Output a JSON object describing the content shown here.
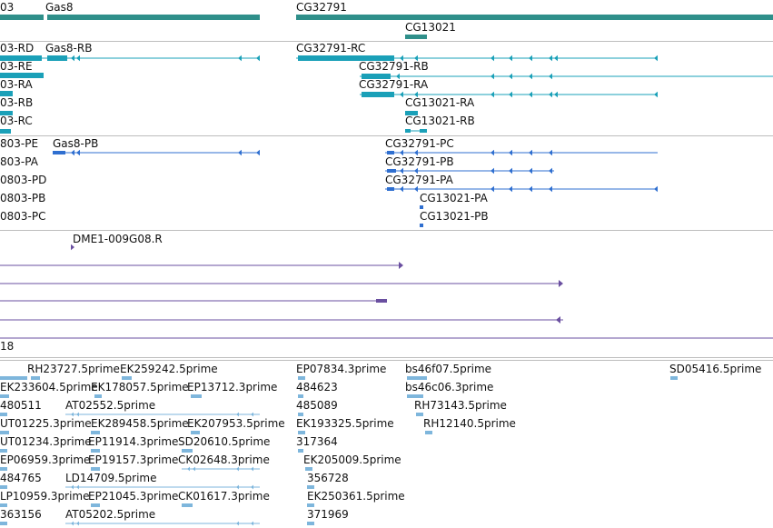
{
  "colors": {
    "gene": "#2f8f8a",
    "transcript": "#1aa0b8",
    "protein": "#2f6fd0",
    "clone_line": "#6a4fa0",
    "clone_head": "#6a4fa0",
    "est": "#7eb6dc",
    "separator": "#bdbdbd"
  },
  "tracks": {
    "genes": [
      "03",
      "Gas8",
      "CG32791",
      "CG13021"
    ],
    "transcripts": [
      "03-RD",
      "Gas8-RB",
      "CG32791-RC",
      "03-RE",
      "CG32791-RB",
      "03-RA",
      "CG32791-RA",
      "03-RB",
      "CG13021-RA",
      "03-RC",
      "CG13021-RB"
    ],
    "proteins": [
      "803-PE",
      "Gas8-PB",
      "CG32791-PC",
      "803-PA",
      "CG32791-PB",
      "0803-PD",
      "CG32791-PA",
      "0803-PB",
      "CG13021-PA",
      "0803-PC",
      "CG13021-PB"
    ],
    "clones": [
      "DME1-009G08.R"
    ],
    "misc": [
      "18"
    ],
    "ests": [
      "RH23727.5prime",
      "EK259242.5prime",
      "EP07834.3prime",
      "bs46f07.5prime",
      "SD05416.5prime",
      "EK233604.5prime",
      "EK178057.5prime",
      "EP13712.3prime",
      "484623",
      "bs46c06.3prime",
      "480511",
      "AT02552.5prime",
      "485089",
      "RH73143.5prime",
      "UT01225.3prime",
      "EK289458.5prime",
      "EK207953.5prime",
      "EK193325.5prime",
      "RH12140.5prime",
      "UT01234.3prime",
      "EP11914.3prime",
      "SD20610.5prime",
      "317364",
      "EP06959.3prime",
      "EP19157.3prime",
      "CK02648.3prime",
      "EK205009.5prime",
      "484765",
      "LD14709.5prime",
      "356728",
      "LP10959.3prime",
      "EP21045.3prime",
      "CK01617.3prime",
      "EK250361.5prime",
      "363156",
      "AT05202.5prime",
      "371969"
    ]
  }
}
